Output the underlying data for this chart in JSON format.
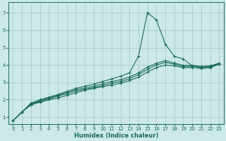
{
  "xlabel": "Humidex (Indice chaleur)",
  "bg_color": "#cce8e8",
  "grid_color": "#aacccc",
  "line_color": "#1a6b5a",
  "xlim": [
    -0.5,
    23.5
  ],
  "ylim": [
    0.6,
    7.6
  ],
  "xticks": [
    0,
    1,
    2,
    3,
    4,
    5,
    6,
    7,
    8,
    9,
    10,
    11,
    12,
    13,
    14,
    15,
    16,
    17,
    18,
    19,
    20,
    21,
    22,
    23
  ],
  "yticks": [
    1,
    2,
    3,
    4,
    5,
    6,
    7
  ],
  "lines": [
    {
      "x": [
        0,
        1,
        2,
        3,
        4,
        5,
        6,
        7,
        8,
        9,
        10,
        11,
        12,
        13,
        14,
        15,
        16,
        17,
        18,
        19,
        20,
        21,
        22,
        23
      ],
      "y": [
        0.8,
        1.3,
        1.7,
        1.85,
        2.0,
        2.1,
        2.25,
        2.4,
        2.55,
        2.65,
        2.75,
        2.85,
        2.95,
        3.1,
        3.3,
        3.6,
        3.85,
        4.0,
        3.95,
        3.85,
        3.85,
        3.8,
        3.85,
        4.05
      ]
    },
    {
      "x": [
        0,
        1,
        2,
        3,
        4,
        5,
        6,
        7,
        8,
        9,
        10,
        11,
        12,
        13,
        14,
        15,
        16,
        17,
        18,
        19,
        20,
        21,
        22,
        23
      ],
      "y": [
        0.8,
        1.3,
        1.75,
        1.9,
        2.05,
        2.2,
        2.35,
        2.5,
        2.6,
        2.7,
        2.82,
        2.95,
        3.05,
        3.2,
        3.45,
        3.75,
        4.0,
        4.15,
        4.05,
        3.92,
        3.92,
        3.88,
        3.9,
        4.1
      ]
    },
    {
      "x": [
        0,
        1,
        2,
        3,
        4,
        5,
        6,
        7,
        8,
        9,
        10,
        11,
        12,
        13,
        14,
        15,
        16,
        17,
        18,
        19,
        20,
        21,
        22,
        23
      ],
      "y": [
        0.8,
        1.3,
        1.78,
        1.95,
        2.1,
        2.25,
        2.42,
        2.58,
        2.68,
        2.78,
        2.92,
        3.05,
        3.15,
        3.32,
        3.55,
        3.88,
        4.1,
        4.25,
        4.12,
        3.98,
        3.98,
        3.92,
        3.95,
        4.1
      ]
    },
    {
      "x": [
        0,
        1,
        2,
        3,
        4,
        5,
        6,
        7,
        8,
        9,
        10,
        11,
        12,
        13,
        14,
        15,
        16,
        17,
        18,
        19,
        20,
        21,
        22,
        23
      ],
      "y": [
        0.8,
        1.3,
        1.8,
        2.0,
        2.15,
        2.3,
        2.48,
        2.65,
        2.78,
        2.9,
        3.05,
        3.2,
        3.35,
        3.55,
        4.5,
        7.0,
        6.6,
        5.2,
        4.5,
        4.35,
        3.95,
        3.85,
        3.85,
        4.05
      ]
    }
  ]
}
